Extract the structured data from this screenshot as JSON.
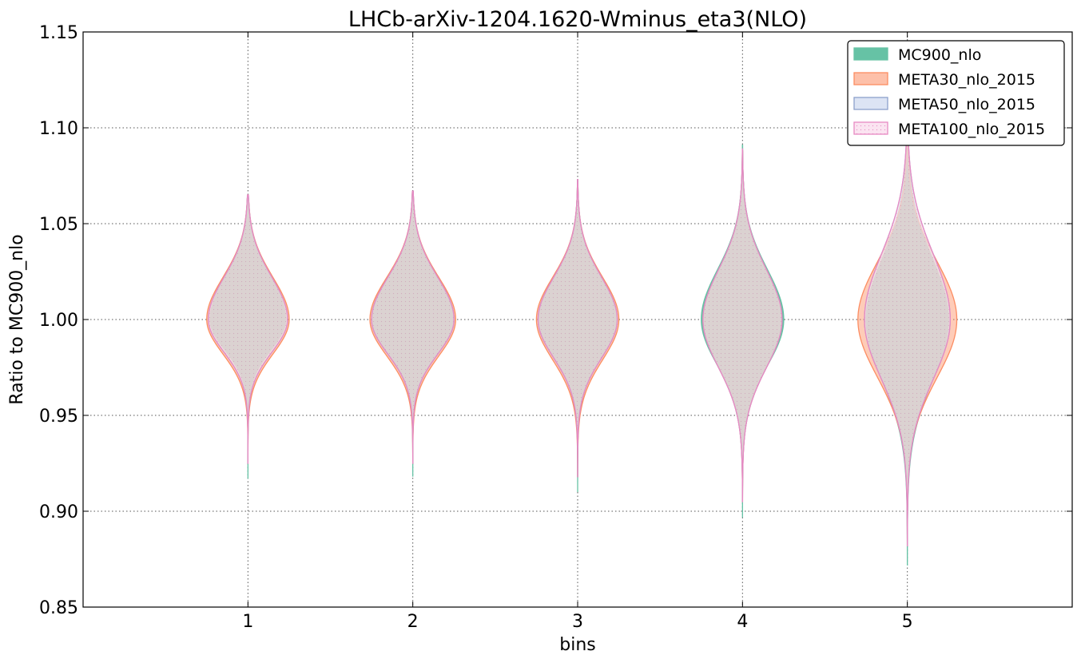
{
  "chart_data": {
    "type": "violin",
    "title": "LHCb-arXiv-1204.1620-Wminus_eta3(NLO)",
    "xlabel": "bins",
    "ylabel": "Ratio to MC900_nlo",
    "xlim": [
      0,
      6
    ],
    "ylim": [
      0.85,
      1.15
    ],
    "x_ticks": [
      "1",
      "2",
      "3",
      "4",
      "5"
    ],
    "y_ticks": [
      "0.85",
      "0.90",
      "0.95",
      "1.00",
      "1.05",
      "1.10",
      "1.15"
    ],
    "grid": true,
    "legend_position": "top-right",
    "series": [
      {
        "name": "MC900_nlo",
        "color": "#66c2a5",
        "fill": "#66c2a5",
        "fill_opacity": 1,
        "violins": [
          {
            "bin": 1,
            "min": 0.917,
            "max": 1.063,
            "half_width": 0.23,
            "center": 1.0,
            "upper_spread": 0.022,
            "lower_spread": 0.016
          },
          {
            "bin": 2,
            "min": 0.918,
            "max": 1.066,
            "half_width": 0.25,
            "center": 1.0,
            "upper_spread": 0.022,
            "lower_spread": 0.018
          },
          {
            "bin": 3,
            "min": 0.91,
            "max": 1.072,
            "half_width": 0.24,
            "center": 1.0,
            "upper_spread": 0.022,
            "lower_spread": 0.02
          },
          {
            "bin": 4,
            "min": 0.897,
            "max": 1.091,
            "half_width": 0.25,
            "center": 1.0,
            "upper_spread": 0.026,
            "lower_spread": 0.024
          },
          {
            "bin": 5,
            "min": 0.872,
            "max": 1.11,
            "half_width": 0.25,
            "center": 1.0,
            "upper_spread": 0.032,
            "lower_spread": 0.032
          }
        ]
      },
      {
        "name": "META30_nlo_2015",
        "color": "#fc8d62",
        "fill": "#fc8d62",
        "fill_opacity": 0.45,
        "violins": [
          {
            "bin": 1,
            "min": 0.925,
            "max": 1.063,
            "half_width": 0.25,
            "center": 1.0,
            "upper_spread": 0.022,
            "lower_spread": 0.018
          },
          {
            "bin": 2,
            "min": 0.925,
            "max": 1.067,
            "half_width": 0.26,
            "center": 1.0,
            "upper_spread": 0.022,
            "lower_spread": 0.019
          },
          {
            "bin": 3,
            "min": 0.918,
            "max": 1.073,
            "half_width": 0.25,
            "center": 1.0,
            "upper_spread": 0.022,
            "lower_spread": 0.021
          },
          {
            "bin": 4,
            "min": 0.905,
            "max": 1.088,
            "half_width": 0.24,
            "center": 1.0,
            "upper_spread": 0.026,
            "lower_spread": 0.025
          },
          {
            "bin": 5,
            "min": 0.882,
            "max": 1.11,
            "half_width": 0.3,
            "center": 1.0,
            "upper_spread": 0.03,
            "lower_spread": 0.03
          }
        ]
      },
      {
        "name": "META50_nlo_2015",
        "color": "#8da0cb",
        "fill": "#dce4f4",
        "fill_opacity": 0.45,
        "violins": [
          {
            "bin": 1,
            "min": 0.925,
            "max": 1.064,
            "half_width": 0.24,
            "center": 1.0,
            "upper_spread": 0.022,
            "lower_spread": 0.017
          },
          {
            "bin": 2,
            "min": 0.925,
            "max": 1.067,
            "half_width": 0.25,
            "center": 1.0,
            "upper_spread": 0.022,
            "lower_spread": 0.018
          },
          {
            "bin": 3,
            "min": 0.918,
            "max": 1.073,
            "half_width": 0.24,
            "center": 1.0,
            "upper_spread": 0.022,
            "lower_spread": 0.02
          },
          {
            "bin": 4,
            "min": 0.905,
            "max": 1.088,
            "half_width": 0.24,
            "center": 1.0,
            "upper_spread": 0.026,
            "lower_spread": 0.025
          },
          {
            "bin": 5,
            "min": 0.882,
            "max": 1.11,
            "half_width": 0.26,
            "center": 1.0,
            "upper_spread": 0.034,
            "lower_spread": 0.031
          }
        ]
      },
      {
        "name": "META100_nlo_2015",
        "color": "#e78ac3",
        "fill": "#fbe4f1",
        "fill_opacity": 0.45,
        "violins": [
          {
            "bin": 1,
            "min": 0.925,
            "max": 1.065,
            "half_width": 0.24,
            "center": 1.0,
            "upper_spread": 0.022,
            "lower_spread": 0.017
          },
          {
            "bin": 2,
            "min": 0.925,
            "max": 1.067,
            "half_width": 0.25,
            "center": 1.0,
            "upper_spread": 0.022,
            "lower_spread": 0.018
          },
          {
            "bin": 3,
            "min": 0.918,
            "max": 1.073,
            "half_width": 0.24,
            "center": 1.0,
            "upper_spread": 0.022,
            "lower_spread": 0.02
          },
          {
            "bin": 4,
            "min": 0.905,
            "max": 1.089,
            "half_width": 0.24,
            "center": 1.0,
            "upper_spread": 0.026,
            "lower_spread": 0.025
          },
          {
            "bin": 5,
            "min": 0.882,
            "max": 1.112,
            "half_width": 0.26,
            "center": 1.0,
            "upper_spread": 0.034,
            "lower_spread": 0.031
          }
        ]
      }
    ]
  }
}
